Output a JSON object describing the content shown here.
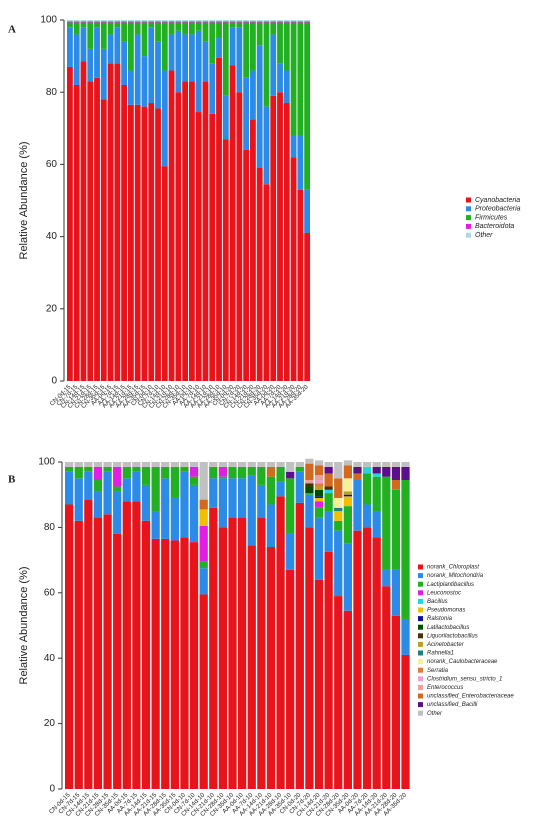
{
  "chart_data": [
    {
      "type": "stacked_bar",
      "panel": "A",
      "ylabel": "Relative Abundance (%)",
      "categories": [
        "CN-0d-15",
        "CN-7d-15",
        "CN-14d-15",
        "CN-21d-15",
        "CN-28d-15",
        "CN-35d-15",
        "AA-0d-15",
        "AA-7d-15",
        "AA-14d-15",
        "AA-21d-15",
        "AA-28d-15",
        "AA-35d-15",
        "CN-0d-10",
        "CN-7d-10",
        "CN-14d-10",
        "CN-21d-10",
        "CN-28d-10",
        "CN-35d-10",
        "AA-0d-10",
        "AA-7d-10",
        "AA-14d-10",
        "AA-21d-10",
        "AA-28d-10",
        "AA-35d-10",
        "CN-0d-20",
        "CN-7d-20",
        "CN-14d-20",
        "CN-21d-20",
        "CN-28d-20",
        "CN-35d-20",
        "AA-0d-20",
        "AA-7d-20",
        "AA-14d-20",
        "AA-21d-20",
        "AA-28d-20",
        "AA-35d-20"
      ],
      "ylim": [
        0,
        100
      ],
      "yticks": [
        0,
        20,
        40,
        60,
        80,
        100
      ],
      "legend": "right",
      "series": [
        {
          "name": "Cyanobacteria",
          "color": "#e8141c",
          "values": [
            87,
            82,
            88.5,
            83,
            84,
            78,
            88,
            88,
            82,
            76.5,
            76.5,
            76,
            77,
            75.5,
            59.5,
            86,
            80,
            83,
            83,
            74.5,
            83,
            74,
            89.5,
            67,
            87.5,
            80,
            64,
            72.5,
            59,
            54.5,
            79,
            80,
            77,
            62,
            53,
            41
          ]
        },
        {
          "name": "Proteobacteria",
          "color": "#2b8be6",
          "values": [
            11,
            14,
            9.5,
            9,
            14,
            14,
            8,
            10,
            12,
            9.5,
            19.5,
            14,
            21,
            18.5,
            26.5,
            10,
            17,
            13,
            13,
            22.5,
            11,
            14,
            5.5,
            12,
            10.5,
            18,
            20,
            13.5,
            34,
            21.5,
            17,
            8,
            9,
            6,
            15,
            12
          ]
        },
        {
          "name": "Firmicutes",
          "color": "#22b022",
          "values": [
            1.3,
            3.3,
            1.3,
            7.3,
            1.3,
            7.3,
            3.3,
            1.3,
            5.3,
            13.3,
            3.3,
            9.3,
            1.3,
            5.3,
            13.3,
            3.3,
            2.3,
            3.3,
            3.3,
            2.3,
            5.3,
            11.3,
            4.3,
            20.3,
            1.3,
            1.3,
            15.3,
            13.3,
            6.3,
            23.3,
            3.3,
            11.3,
            13.3,
            31.3,
            31.3,
            46.3
          ]
        },
        {
          "name": "Bacteroidota",
          "color": "#e21ee2",
          "values": [
            0.3,
            0.3,
            0.3,
            0.3,
            0.3,
            0.3,
            0.3,
            0.3,
            0.3,
            0.3,
            0.3,
            0.3,
            0.3,
            0.3,
            0.3,
            0.3,
            0.3,
            0.3,
            0.3,
            0.3,
            0.3,
            0.3,
            0.3,
            0.3,
            0.3,
            0.3,
            0.3,
            0.3,
            0.3,
            0.3,
            0.3,
            0.3,
            0.3,
            0.3,
            0.3,
            0.3
          ]
        },
        {
          "name": "Other",
          "color": "#b0d8e0",
          "values": [
            0.4,
            0.4,
            0.4,
            0.4,
            0.4,
            0.4,
            0.4,
            0.4,
            0.4,
            0.4,
            0.4,
            0.4,
            0.4,
            0.4,
            0.4,
            0.4,
            0.4,
            0.4,
            0.4,
            0.4,
            0.4,
            0.4,
            0.4,
            0.4,
            0.4,
            0.4,
            0.4,
            0.4,
            0.4,
            0.4,
            0.4,
            0.4,
            0.4,
            0.4,
            0.4,
            0.4
          ]
        }
      ]
    },
    {
      "type": "stacked_bar",
      "panel": "B",
      "ylabel": "Relative Abundance (%)",
      "categories": [
        "CN-0d-15",
        "CN-7d-15",
        "CN-14d-15",
        "CN-21d-15",
        "CN-28d-15",
        "CN-35d-15",
        "AA-0d-15",
        "AA-7d-15",
        "AA-14d-15",
        "AA-21d-15",
        "AA-28d-15",
        "AA-35d-15",
        "CN-0d-10",
        "CN-7d-10",
        "CN-14d-10",
        "CN-21d-10",
        "CN-28d-10",
        "CN-35d-10",
        "AA-0d-10",
        "AA-7d-10",
        "AA-14d-10",
        "AA-21d-10",
        "AA-28d-10",
        "AA-35d-10",
        "CN-0d-20",
        "CN-7d-20",
        "CN-14d-20",
        "CN-21d-20",
        "CN-28d-20",
        "CN-35d-20",
        "AA-0d-20",
        "AA-7d-20",
        "AA-14d-20",
        "AA-21d-20",
        "AA-28d-20",
        "AA-35d-20"
      ],
      "ylim": [
        0,
        100
      ],
      "yticks": [
        0,
        20,
        40,
        60,
        80,
        100
      ],
      "legend": "right",
      "series": [
        {
          "name": "norank_Chloroplast",
          "color": "#e8141c",
          "values": [
            87,
            82,
            88.5,
            83,
            84,
            78,
            88,
            88,
            82,
            76.5,
            76.5,
            76,
            77,
            75.5,
            59.5,
            86,
            80,
            83,
            83,
            74.5,
            83,
            74,
            89.5,
            67,
            87.5,
            80,
            64,
            72.5,
            59,
            54.5,
            79,
            80,
            77,
            62,
            53,
            41
          ]
        },
        {
          "name": "norank_Mitochondria",
          "color": "#2b8be6",
          "values": [
            10,
            13,
            8.5,
            8,
            13,
            13,
            7,
            9,
            11,
            8.5,
            18.5,
            13,
            20,
            17.5,
            8,
            9,
            15,
            12,
            12,
            21.5,
            10,
            13,
            4.5,
            11,
            9.5,
            10,
            19,
            12.5,
            20,
            20.5,
            15.5,
            7,
            8,
            5,
            14,
            11
          ]
        },
        {
          "name": "Lactiplantibacillus",
          "color": "#22b022",
          "values": [
            1.5,
            3.5,
            1.5,
            3.5,
            1.5,
            1.5,
            3.5,
            1.5,
            5.5,
            13.5,
            3.5,
            9.5,
            1.5,
            2.5,
            2,
            3.5,
            0.5,
            3.5,
            3.5,
            2.5,
            5.5,
            8.5,
            4.5,
            17,
            1.5,
            0.5,
            3,
            5.5,
            3,
            11.5,
            0,
            9.5,
            10.5,
            28.5,
            24.5,
            42.5
          ]
        },
        {
          "name": "Leuconostoc",
          "color": "#e21ee2",
          "values": [
            0,
            0,
            0,
            4,
            0,
            6,
            0,
            0,
            0,
            0,
            0,
            0,
            0,
            3,
            11,
            0,
            3,
            0,
            0,
            0,
            0,
            0,
            0,
            0,
            0,
            0,
            2,
            0,
            0,
            0,
            0,
            0,
            0,
            0,
            0,
            0
          ]
        },
        {
          "name": "Bacillus",
          "color": "#22d4e0",
          "values": [
            0,
            0,
            0,
            0,
            0,
            0,
            0,
            0,
            0,
            0,
            0,
            0,
            0,
            0,
            0,
            0,
            0,
            0,
            0,
            0,
            0,
            0,
            0,
            0,
            0,
            0,
            0,
            1,
            0,
            0,
            0,
            2,
            1,
            0,
            0,
            0
          ]
        },
        {
          "name": "Pseudomonas",
          "color": "#f0c000",
          "values": [
            0,
            0,
            0,
            0,
            0,
            0,
            0,
            0,
            0,
            0,
            0,
            0,
            0,
            0,
            5,
            0,
            0,
            0,
            0,
            0,
            0,
            0,
            0,
            0,
            0,
            0,
            1,
            0,
            3,
            3,
            0,
            0,
            0,
            0,
            0,
            0
          ]
        },
        {
          "name": "Ralstonia",
          "color": "#1010a0",
          "values": [
            0,
            0,
            0,
            0,
            0,
            0,
            0,
            0,
            0,
            0,
            0,
            0,
            0,
            0,
            0,
            0,
            0,
            0,
            0,
            0,
            0,
            0,
            0,
            0,
            0,
            0,
            0.5,
            0,
            0,
            0.5,
            0,
            0,
            0,
            0,
            0,
            0
          ]
        },
        {
          "name": "Latilactobacillus",
          "color": "#004d00",
          "values": [
            0,
            0,
            0,
            0,
            0,
            0,
            0,
            0,
            0,
            0,
            0,
            0,
            0,
            0,
            0,
            0,
            0,
            0,
            0,
            0,
            0,
            0,
            0,
            0,
            0,
            2,
            2,
            0,
            0,
            0,
            0,
            0,
            0,
            0,
            0,
            0
          ]
        },
        {
          "name": "Liquorilactobacillus",
          "color": "#4a3000",
          "values": [
            0,
            0,
            0,
            0,
            0,
            0,
            0,
            0,
            0,
            0,
            0,
            0,
            0,
            0,
            0,
            0,
            0,
            0,
            0,
            0,
            0,
            0,
            0,
            0,
            0,
            1,
            0,
            1,
            0,
            0,
            0,
            0,
            0,
            0,
            0,
            0
          ]
        },
        {
          "name": "Acinetobacter",
          "color": "#b8a020",
          "values": [
            0,
            0,
            0,
            0,
            0,
            0,
            0,
            0,
            0,
            0,
            0,
            0,
            0,
            0,
            0,
            0,
            0,
            0,
            0,
            0,
            0,
            0,
            0,
            0,
            0,
            0,
            1,
            0,
            0,
            1,
            0,
            0,
            0,
            0,
            0,
            0
          ]
        },
        {
          "name": "Rahnella1",
          "color": "#208080",
          "values": [
            0,
            0,
            0,
            0,
            0,
            0,
            0,
            0,
            0,
            0,
            0,
            0,
            0,
            0,
            0,
            0,
            0,
            0,
            0,
            0,
            0,
            0,
            0,
            0,
            0,
            0,
            0,
            0,
            1,
            0,
            0,
            0,
            0,
            0,
            0,
            0
          ]
        },
        {
          "name": "norank_Caulobacteraceae",
          "color": "#f5f09a",
          "values": [
            0,
            0,
            0,
            0,
            0,
            0,
            0,
            0,
            0,
            0,
            0,
            0,
            0,
            0,
            0,
            0,
            0,
            0,
            0,
            0,
            0,
            0,
            0,
            0,
            0,
            0,
            0,
            0,
            3,
            4,
            0,
            0,
            0,
            0,
            0,
            0
          ]
        },
        {
          "name": "Serratia",
          "color": "#e07b3a",
          "values": [
            0,
            0,
            0,
            0,
            0,
            0,
            0,
            0,
            0,
            0,
            0,
            0,
            0,
            0,
            0,
            0,
            0,
            0,
            0,
            0,
            0,
            0,
            0,
            0,
            0,
            0,
            1,
            0,
            0,
            0,
            0,
            0,
            0,
            0,
            0,
            0
          ]
        },
        {
          "name": "Clostridium_sensu_stricto_1",
          "color": "#f0a0d0",
          "values": [
            0,
            0,
            0,
            0,
            0,
            0,
            0,
            0,
            0,
            0,
            0,
            0,
            0,
            0,
            0,
            0,
            0,
            0,
            0,
            0,
            0,
            0,
            0,
            0,
            0,
            0,
            1,
            0,
            0,
            0,
            0,
            0,
            0,
            0,
            0,
            0
          ]
        },
        {
          "name": "Enterococcus",
          "color": "#e8a0a0",
          "values": [
            0,
            0,
            0,
            0,
            0,
            0,
            0,
            0,
            0,
            0,
            0,
            0,
            0,
            0,
            0,
            0,
            0,
            0,
            0,
            0,
            0,
            0,
            0,
            0,
            0,
            1,
            1.5,
            0,
            0,
            0,
            0,
            0,
            0,
            0,
            0,
            0
          ]
        },
        {
          "name": "unclassified_Enterobacteriaceae",
          "color": "#d2691e",
          "values": [
            0,
            0,
            0,
            0,
            0,
            0,
            0,
            0,
            0,
            0,
            0,
            0,
            0,
            0,
            3,
            0,
            0,
            0,
            0,
            0,
            0,
            3,
            0,
            0,
            0,
            5,
            3,
            4,
            6,
            4,
            2,
            0,
            0,
            0,
            3,
            0
          ]
        },
        {
          "name": "unclassified_Bacilli",
          "color": "#5b0f8a",
          "values": [
            0,
            0,
            0,
            0,
            0,
            0,
            0,
            0,
            0,
            0,
            0,
            0,
            0,
            0,
            0,
            0,
            0,
            0,
            0,
            0,
            0,
            0,
            0,
            2,
            0,
            0,
            0,
            2,
            0,
            0,
            2,
            0,
            2,
            3,
            4,
            4
          ]
        },
        {
          "name": "Other",
          "color": "#c0c0c0",
          "values": [
            1.5,
            1.5,
            1.5,
            1.5,
            1.5,
            1.5,
            1.5,
            1.5,
            1.5,
            1.5,
            1.5,
            1.5,
            1.5,
            1.5,
            11.5,
            1.5,
            1.5,
            1.5,
            1.5,
            1.5,
            1.5,
            1.5,
            1.5,
            3,
            1.5,
            1.5,
            1.5,
            1.5,
            5,
            1.5,
            1.5,
            1.5,
            1.5,
            1.5,
            1.5,
            1.5
          ]
        }
      ]
    }
  ]
}
